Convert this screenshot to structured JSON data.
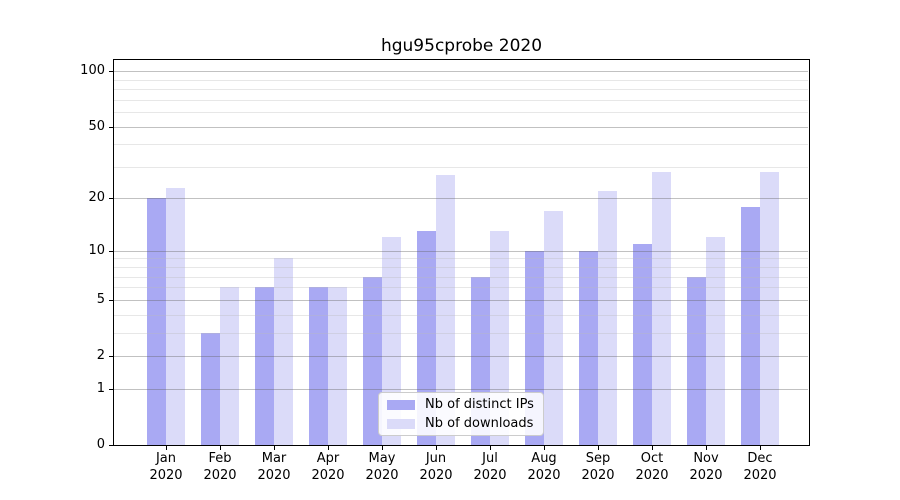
{
  "title": "hgu95cprobe 2020",
  "colors": {
    "distinct_ips_bar": "#a9a9f3",
    "downloads_bar": "#dbdbf9",
    "major_gridline": "#c3c3c3",
    "minor_gridline": "#ebebeb",
    "axis_spine": "#000000",
    "legend_border": "#cccccc"
  },
  "legend": {
    "items": [
      {
        "label": "Nb of distinct IPs",
        "color": "#a9a9f3"
      },
      {
        "label": "Nb of downloads",
        "color": "#dbdbf9"
      }
    ]
  },
  "chart_data": {
    "type": "bar",
    "title": "hgu95cprobe 2020",
    "categories": [
      "Jan 2020",
      "Feb 2020",
      "Mar 2020",
      "Apr 2020",
      "May 2020",
      "Jun 2020",
      "Jul 2020",
      "Aug 2020",
      "Sep 2020",
      "Oct 2020",
      "Nov 2020",
      "Dec 2020"
    ],
    "series": [
      {
        "name": "Nb of distinct IPs",
        "color": "#a9a9f3",
        "values": [
          20,
          3,
          6,
          6,
          7,
          13,
          7,
          10,
          10,
          11,
          7,
          18
        ]
      },
      {
        "name": "Nb of downloads",
        "color": "#dbdbf9",
        "values": [
          23,
          6,
          9,
          6,
          12,
          27,
          13,
          17,
          22,
          28,
          12,
          28
        ]
      }
    ],
    "xlabel": "",
    "ylabel": "",
    "y_axis": {
      "scale": "log1p",
      "tick_values": [
        0,
        1,
        2,
        5,
        10,
        20,
        50,
        100
      ],
      "minor_gridline_values": [
        3,
        4,
        6,
        7,
        8,
        9,
        30,
        40,
        60,
        70,
        80,
        90
      ],
      "ylim": [
        0,
        116
      ]
    },
    "grid": true,
    "legend_position": "lower center inside plot"
  }
}
